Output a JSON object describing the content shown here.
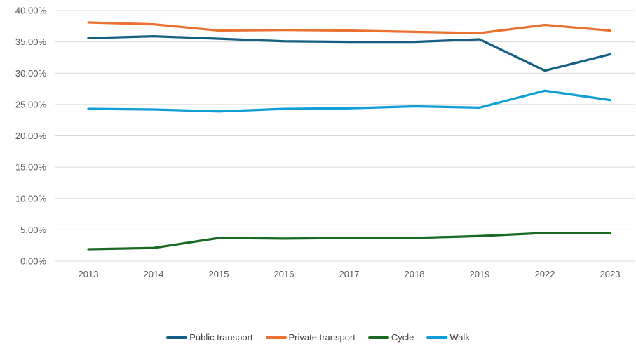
{
  "chart_data": {
    "type": "line",
    "title": "",
    "categories": [
      "2013",
      "2014",
      "2015",
      "2016",
      "2017",
      "2018",
      "2019",
      "2022",
      "2023"
    ],
    "series": [
      {
        "name": "Public transport",
        "color": "#156082",
        "values": [
          35.6,
          35.9,
          35.5,
          35.1,
          35.0,
          35.0,
          35.4,
          30.4,
          33.0
        ]
      },
      {
        "name": "Private transport",
        "color": "#E97132",
        "values": [
          38.1,
          37.8,
          36.8,
          36.9,
          36.8,
          36.6,
          36.4,
          37.7,
          36.8
        ]
      },
      {
        "name": "Cycle",
        "color": "#196B24",
        "values": [
          1.9,
          2.1,
          3.7,
          3.6,
          3.7,
          3.7,
          4.0,
          4.5,
          4.5
        ]
      },
      {
        "name": "Walk",
        "color": "#0F9ED5",
        "values": [
          24.3,
          24.2,
          23.9,
          24.3,
          24.4,
          24.7,
          24.5,
          27.2,
          25.7
        ]
      }
    ],
    "y_axis": {
      "min": 0,
      "max": 40,
      "step": 5,
      "tick_labels_top_down": [
        "40.00%",
        "35.00%",
        "30.00%",
        "25.00%",
        "20.00%",
        "15.00%",
        "10.00%",
        "5.00%",
        "0.00%"
      ]
    },
    "grid": true,
    "legend_position": "bottom"
  },
  "colors": {
    "background": "#FFFFFF",
    "gridline": "#D9D9D9",
    "axis_text": "#595959",
    "legend_text": "#404040"
  }
}
